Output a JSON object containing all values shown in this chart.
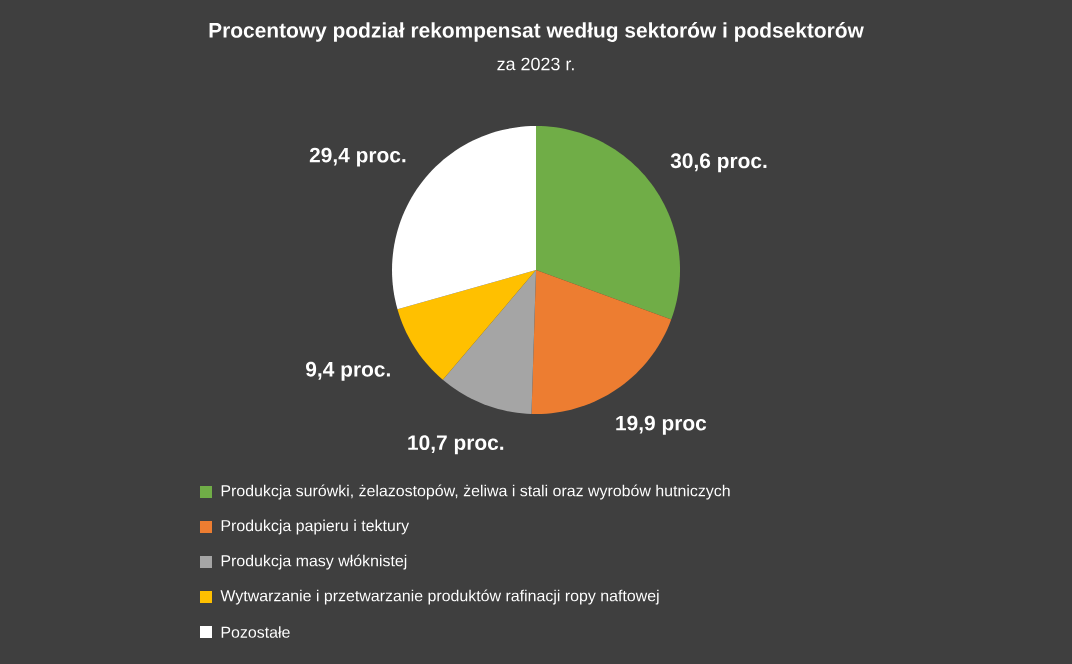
{
  "chart_data": {
    "type": "pie",
    "title": "Procentowy podział rekompensat według sektorów i podsektorów",
    "subtitle": "za 2023 r.",
    "categories": [
      "Produkcja surówki, żelazostopów, żeliwa i stali oraz wyrobów hutniczych",
      "Produkcja papieru i tektury",
      "Produkcja masy włóknistej",
      "Wytwarzanie i przetwarzanie produktów rafinacji ropy naftowej",
      "Pozostałe"
    ],
    "values": [
      30.6,
      19.9,
      10.7,
      9.4,
      29.4
    ],
    "colors": [
      "#70ad47",
      "#ed7d31",
      "#a5a5a5",
      "#ffc000",
      "#ffffff"
    ],
    "value_labels": [
      "30,6 proc.",
      "19,9 proc",
      "10,7 proc.",
      "9,4 proc.",
      "29,4 proc."
    ],
    "legend": "bottom"
  }
}
